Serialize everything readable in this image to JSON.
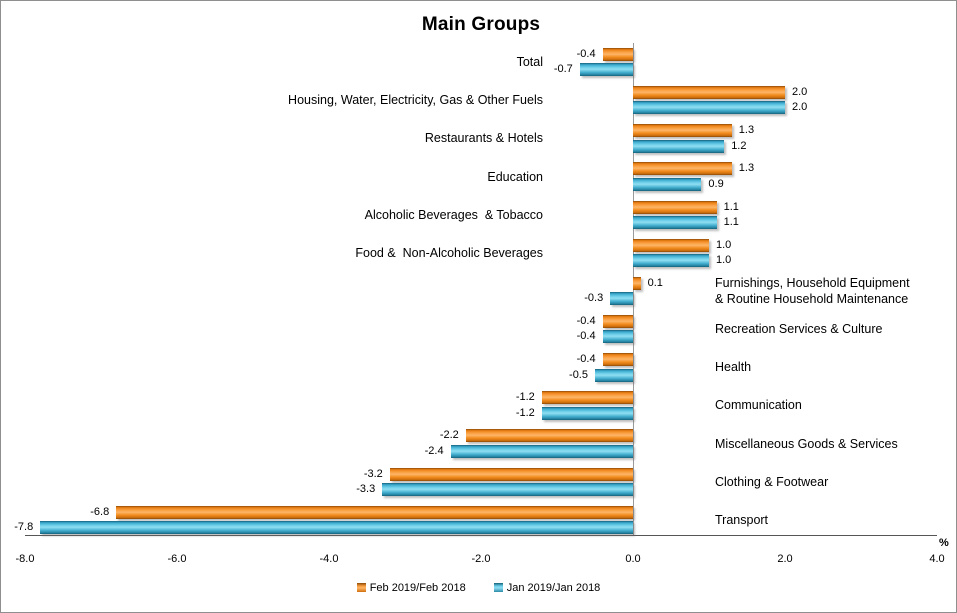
{
  "title": "Main Groups",
  "chart_data": {
    "type": "bar",
    "orientation": "horizontal",
    "title": "Main Groups",
    "axis_unit_label": "%",
    "xlim": [
      -8.0,
      4.0
    ],
    "x_tick_values": [
      -8,
      -6,
      -4,
      -2,
      0,
      2,
      4
    ],
    "x_ticks": [
      "-8.0",
      "-6.0",
      "-4.0",
      "-2.0",
      "0.0",
      "2.0",
      "4.0"
    ],
    "grid": "off",
    "legend_position": "bottom",
    "categories": [
      {
        "lines": [
          "Total"
        ],
        "side": "left"
      },
      {
        "lines": [
          "Housing, Water, Electricity, Gas & Other Fuels"
        ],
        "side": "left"
      },
      {
        "lines": [
          "Restaurants & Hotels"
        ],
        "side": "left"
      },
      {
        "lines": [
          "Education"
        ],
        "side": "left"
      },
      {
        "lines": [
          "Alcoholic Beverages  & Tobacco"
        ],
        "side": "left"
      },
      {
        "lines": [
          "Food &  Non-Alcoholic Beverages"
        ],
        "side": "left"
      },
      {
        "lines": [
          "Furnishings, Household Equipment",
          "& Routine Household Maintenance"
        ],
        "side": "right"
      },
      {
        "lines": [
          "Recreation Services & Culture"
        ],
        "side": "right"
      },
      {
        "lines": [
          "Health"
        ],
        "side": "right"
      },
      {
        "lines": [
          "Communication"
        ],
        "side": "right"
      },
      {
        "lines": [
          "Miscellaneous Goods & Services"
        ],
        "side": "right"
      },
      {
        "lines": [
          "Clothing & Footwear"
        ],
        "side": "right"
      },
      {
        "lines": [
          "Transport"
        ],
        "side": "right"
      }
    ],
    "series": [
      {
        "name": "Feb 2019/Feb 2018",
        "color": "#F0861E",
        "values": [
          -0.4,
          2.0,
          1.3,
          1.3,
          1.1,
          1.0,
          0.1,
          -0.4,
          -0.4,
          -1.2,
          -2.2,
          -3.2,
          -6.8
        ]
      },
      {
        "name": "Jan 2019/Jan 2018",
        "color": "#41ACCF",
        "values": [
          -0.7,
          2.0,
          1.2,
          0.9,
          1.1,
          1.0,
          -0.3,
          -0.4,
          -0.5,
          -1.2,
          -2.4,
          -3.3,
          -7.8
        ]
      }
    ],
    "colors": {
      "zero_axis_line": "#9A9A9A",
      "x_axis_line": "#565656",
      "chart_border": "#8F8F8F"
    }
  }
}
